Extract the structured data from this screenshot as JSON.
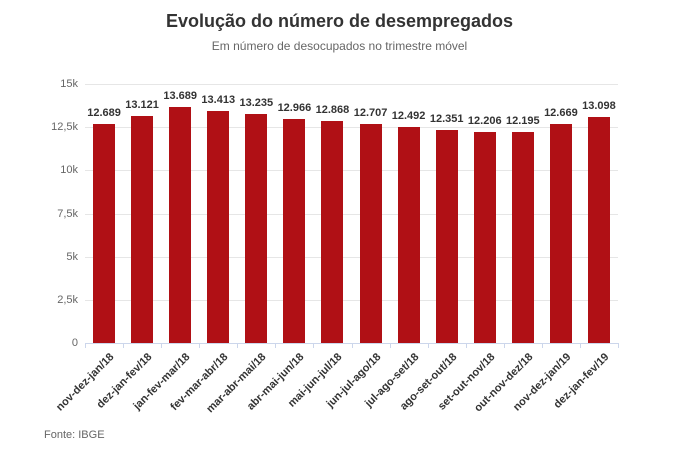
{
  "chart_data": {
    "type": "bar",
    "title": "Evolução do número de desempregados",
    "subtitle": "Em número de desocupados no trimestre móvel",
    "source": "Fonte: IBGE",
    "categories": [
      "nov-dez-jan/18",
      "dez-jan-fev/18",
      "jan-fev-mar/18",
      "fev-mar-abr/18",
      "mar-abr-mai/18",
      "abr-mai-jun/18",
      "mai-jun-jul/18",
      "jun-jul-ago/18",
      "jul-ago-set/18",
      "ago-set-out/18",
      "set-out-nov/18",
      "out-nov-dez/18",
      "nov-dez-jan/19",
      "dez-jan-fev/19"
    ],
    "values": [
      12689,
      13121,
      13689,
      13413,
      13235,
      12966,
      12868,
      12707,
      12492,
      12351,
      12206,
      12195,
      12669,
      13098
    ],
    "value_labels": [
      "12.689",
      "13.121",
      "13.689",
      "13.413",
      "13.235",
      "12.966",
      "12.868",
      "12.707",
      "12.492",
      "12.351",
      "12.206",
      "12.195",
      "12.669",
      "13.098"
    ],
    "xlabel": "",
    "ylabel": "",
    "ylim": [
      0,
      15000
    ],
    "yticks": [
      {
        "value": 0,
        "label": "0"
      },
      {
        "value": 2500,
        "label": "2,5k"
      },
      {
        "value": 5000,
        "label": "5k"
      },
      {
        "value": 7500,
        "label": "7,5k"
      },
      {
        "value": 10000,
        "label": "10k"
      },
      {
        "value": 12500,
        "label": "12,5k"
      },
      {
        "value": 15000,
        "label": "15k"
      }
    ],
    "grid": true,
    "legend": "none",
    "colors": {
      "bar": "#b01015",
      "gridline": "#e6e6e6",
      "axis": "#ccd6eb",
      "title": "#333333",
      "subtitle": "#666666",
      "data_label": "#333333",
      "x_label": "#333333",
      "y_label": "#666666",
      "background": "#ffffff"
    }
  }
}
